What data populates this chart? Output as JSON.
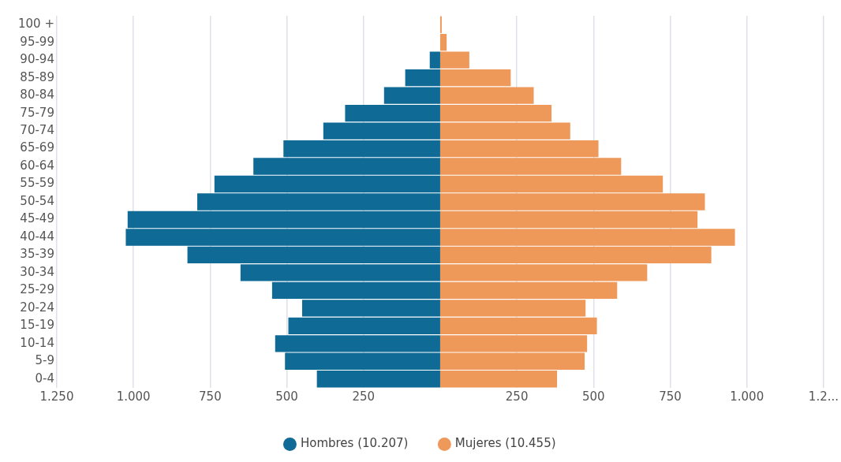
{
  "chart_data": {
    "type": "bar",
    "orientation": "horizontal",
    "stacked": true,
    "categories": [
      "100 +",
      "95-99",
      "90-94",
      "85-89",
      "80-84",
      "75-79",
      "70-74",
      "65-69",
      "60-64",
      "55-59",
      "50-54",
      "45-49",
      "40-44",
      "35-39",
      "30-34",
      "25-29",
      "20-24",
      "15-19",
      "10-14",
      "5-9",
      "0-4"
    ],
    "series": [
      {
        "name": "Hombres (10.207)",
        "color": "#0f6b96",
        "values": [
          null,
          null,
          -34,
          -114,
          -183,
          -310,
          -381,
          -511,
          -609,
          -736,
          -792,
          -1019,
          -1025,
          -824,
          -651,
          -548,
          -450,
          -495,
          -538,
          -506,
          -402
        ]
      },
      {
        "name": "Mujeres (10.455)",
        "color": "#ee985a",
        "values": [
          5,
          21,
          95,
          230,
          305,
          363,
          424,
          516,
          590,
          726,
          863,
          839,
          961,
          884,
          675,
          577,
          474,
          511,
          479,
          471,
          381
        ]
      }
    ],
    "xlim": [
      -1250,
      1250
    ],
    "xticks": [
      {
        "value": -1250,
        "label": "1.250"
      },
      {
        "value": -1000,
        "label": "1.000"
      },
      {
        "value": -750,
        "label": "750"
      },
      {
        "value": -500,
        "label": "500"
      },
      {
        "value": -250,
        "label": "250"
      },
      {
        "value": 250,
        "label": "250"
      },
      {
        "value": 500,
        "label": "500"
      },
      {
        "value": 750,
        "label": "750"
      },
      {
        "value": 1000,
        "label": "1.000"
      },
      {
        "value": 1250,
        "label": "1.2..."
      }
    ],
    "grid": "x",
    "legend": "bottom",
    "marker": "circle"
  }
}
